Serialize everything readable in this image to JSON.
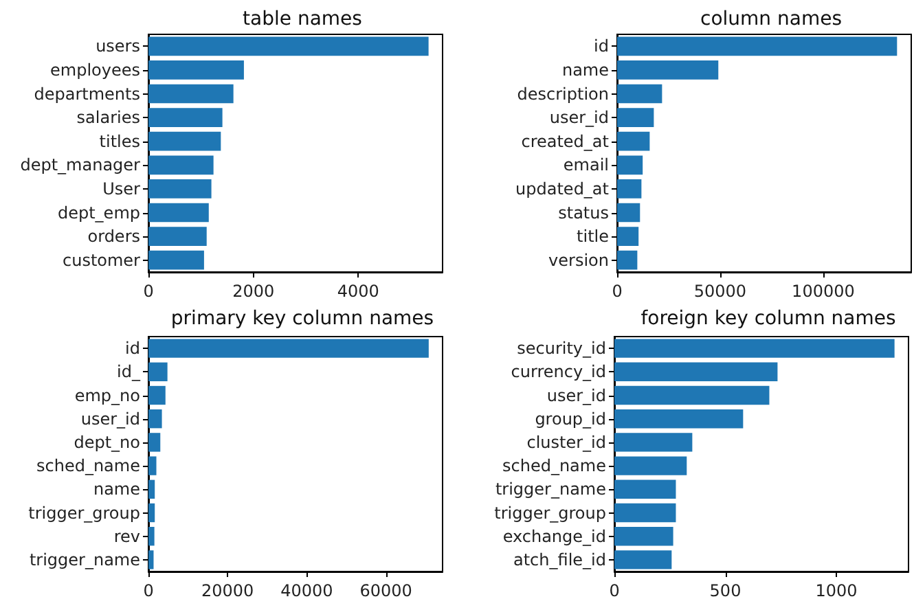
{
  "chart_data": [
    {
      "type": "bar",
      "orientation": "horizontal",
      "title": "table names",
      "categories": [
        "users",
        "employees",
        "departments",
        "salaries",
        "titles",
        "dept_manager",
        "User",
        "dept_emp",
        "orders",
        "customer"
      ],
      "values": [
        5340,
        1820,
        1620,
        1410,
        1380,
        1240,
        1200,
        1150,
        1110,
        1060
      ],
      "color": "#1f77b4",
      "xlim": [
        0,
        5607
      ],
      "xticks": [
        0,
        2000,
        4000
      ]
    },
    {
      "type": "bar",
      "orientation": "horizontal",
      "title": "column names",
      "categories": [
        "id",
        "name",
        "description",
        "user_id",
        "created_at",
        "email",
        "updated_at",
        "status",
        "title",
        "version"
      ],
      "values": [
        135800,
        49100,
        21800,
        17800,
        15800,
        12400,
        11800,
        11100,
        10400,
        9800
      ],
      "color": "#1f77b4",
      "xlim": [
        0,
        142700
      ],
      "xticks": [
        0,
        50000,
        100000
      ]
    },
    {
      "type": "bar",
      "orientation": "horizontal",
      "title": "primary key column names",
      "categories": [
        "id",
        "id_",
        "emp_no",
        "user_id",
        "dept_no",
        "sched_name",
        "name",
        "trigger_group",
        "rev",
        "trigger_name"
      ],
      "values": [
        70800,
        4800,
        4300,
        3400,
        3000,
        2000,
        1600,
        1600,
        1500,
        1300
      ],
      "color": "#1f77b4",
      "xlim": [
        0,
        74300
      ],
      "xticks": [
        0,
        20000,
        40000,
        60000
      ]
    },
    {
      "type": "bar",
      "orientation": "horizontal",
      "title": "foreign key column names",
      "categories": [
        "security_id",
        "currency_id",
        "user_id",
        "group_id",
        "cluster_id",
        "sched_name",
        "trigger_name",
        "trigger_group",
        "exchange_id",
        "atch_file_id"
      ],
      "values": [
        1262,
        735,
        698,
        580,
        351,
        326,
        277,
        277,
        265,
        258
      ],
      "color": "#1f77b4",
      "xlim": [
        0,
        1325
      ],
      "xticks": [
        0,
        500,
        1000
      ]
    }
  ]
}
